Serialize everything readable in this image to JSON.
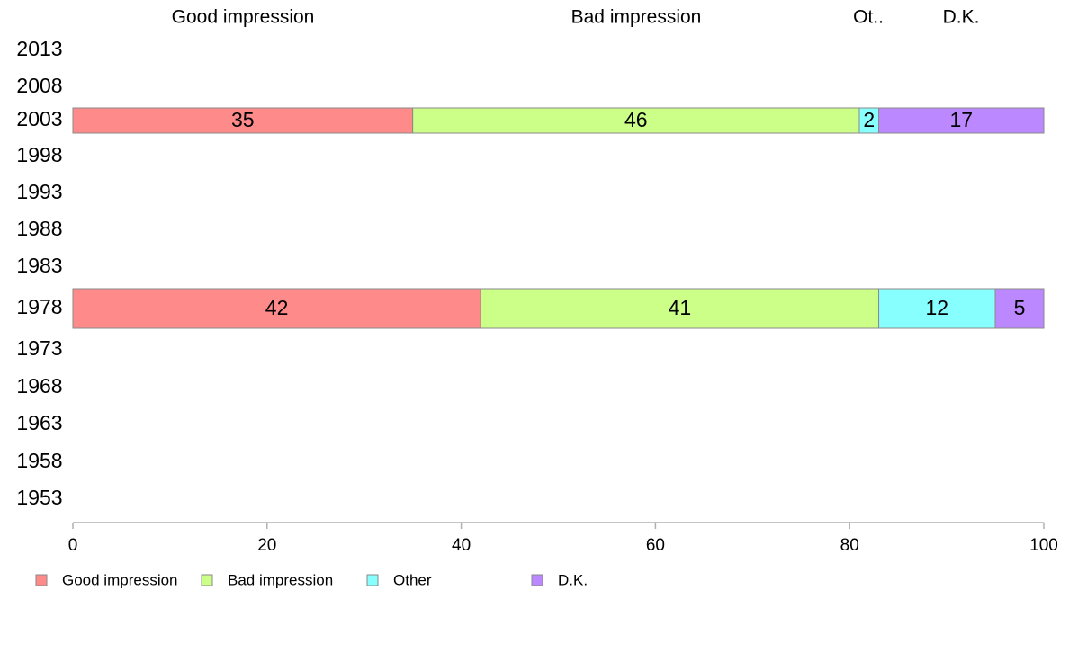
{
  "chart_data": {
    "type": "bar",
    "orientation": "horizontal",
    "stacked": true,
    "title": "",
    "xlabel": "",
    "ylabel": "",
    "xlim": [
      0,
      100
    ],
    "x_ticks": [
      0,
      20,
      40,
      60,
      80,
      100
    ],
    "categories": [
      "2013",
      "2008",
      "2003",
      "1998",
      "1993",
      "1988",
      "1983",
      "1978",
      "1973",
      "1968",
      "1963",
      "1958",
      "1953"
    ],
    "column_headers": [
      "Good impression",
      "Bad impression",
      "Ot..",
      "D.K."
    ],
    "series": [
      {
        "name": "Good impression",
        "color": "#ff8a8a",
        "values": [
          null,
          null,
          35,
          null,
          null,
          null,
          null,
          42,
          null,
          null,
          null,
          null,
          null
        ]
      },
      {
        "name": "Bad impression",
        "color": "#ccff88",
        "values": [
          null,
          null,
          46,
          null,
          null,
          null,
          null,
          41,
          null,
          null,
          null,
          null,
          null
        ]
      },
      {
        "name": "Other",
        "color": "#88ffff",
        "values": [
          null,
          null,
          2,
          null,
          null,
          null,
          null,
          12,
          null,
          null,
          null,
          null,
          null
        ]
      },
      {
        "name": "D.K.",
        "color": "#bb88ff",
        "values": [
          null,
          null,
          17,
          null,
          null,
          null,
          null,
          5,
          null,
          null,
          null,
          null,
          null
        ]
      }
    ],
    "legend_position": "bottom-left",
    "grid": false
  }
}
